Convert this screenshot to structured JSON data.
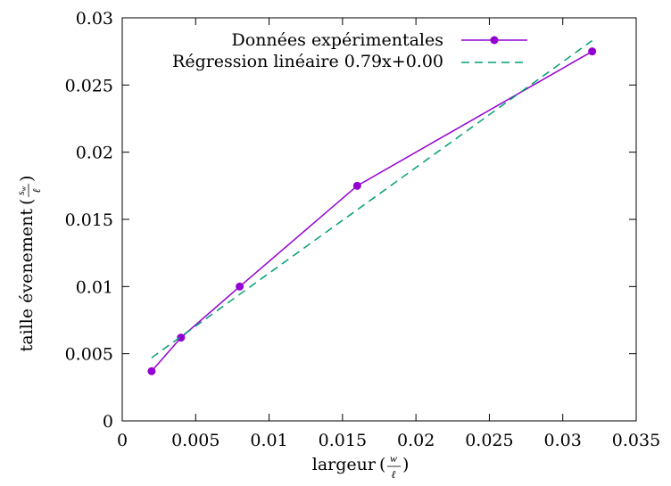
{
  "chart_data": {
    "type": "line",
    "x_ticks": [
      "0",
      "0.005",
      "0.01",
      "0.015",
      "0.02",
      "0.025",
      "0.03",
      "0.035"
    ],
    "y_ticks": [
      "0",
      "0.005",
      "0.01",
      "0.015",
      "0.02",
      "0.025",
      "0.03"
    ],
    "xlim": [
      0,
      0.035
    ],
    "ylim": [
      0,
      0.03
    ],
    "xlabel": "largeur",
    "xlabel_frac": {
      "num": "w",
      "den": "ℓ"
    },
    "ylabel": "taille évenement",
    "ylabel_frac": {
      "num": "s",
      "sub": "w",
      "den": "ℓ"
    },
    "grid": false,
    "legend_position": "top-right",
    "series": [
      {
        "name": "Données expérimentales",
        "color": "#9400d3",
        "style": "line-with-points",
        "x": [
          0.002,
          0.004,
          0.008,
          0.016,
          0.032
        ],
        "y": [
          0.0037,
          0.0062,
          0.01,
          0.0175,
          0.0275
        ]
      },
      {
        "name": "Régression linéaire 0.79x+0.00",
        "color": "#009e73",
        "style": "dashed",
        "x": [
          0.002,
          0.032
        ],
        "y": [
          0.0047,
          0.0283
        ]
      }
    ]
  }
}
